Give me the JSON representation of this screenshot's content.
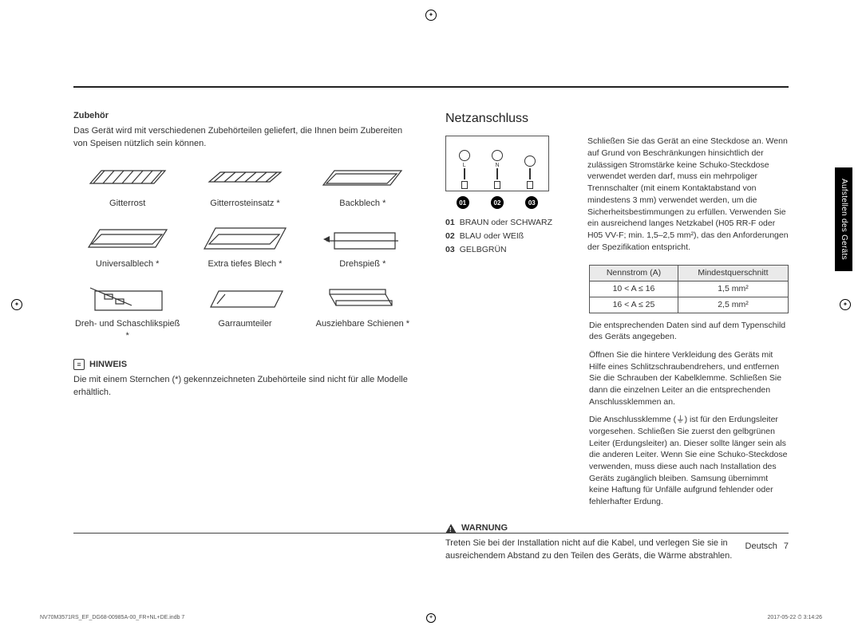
{
  "left": {
    "subhead": "Zubehör",
    "intro": "Das Gerät wird mit verschiedenen Zubehörteilen geliefert, die Ihnen beim Zubereiten von Speisen nützlich sein können.",
    "accessories": [
      {
        "label": "Gitterrost",
        "kind": "wire-rack"
      },
      {
        "label": "Gitterrosteinsatz *",
        "kind": "wire-insert"
      },
      {
        "label": "Backblech *",
        "kind": "tray"
      },
      {
        "label": "Universalblech *",
        "kind": "deep-tray"
      },
      {
        "label": "Extra tiefes Blech *",
        "kind": "extra-deep-tray"
      },
      {
        "label": "Drehspieß *",
        "kind": "rotisserie"
      },
      {
        "label": "Dreh- und Schaschlikspieß *",
        "kind": "skewer"
      },
      {
        "label": "Garraumteiler",
        "kind": "divider"
      },
      {
        "label": "Ausziehbare Schienen *",
        "kind": "rails"
      }
    ],
    "note": {
      "title": "HINWEIS",
      "text": "Die mit einem Sternchen (*) gekennzeichneten Zubehörteile sind nicht für alle Modelle erhältlich."
    }
  },
  "right": {
    "heading": "Netzanschluss",
    "term_labels": [
      "L",
      "N",
      ""
    ],
    "num_labels": [
      "01",
      "02",
      "03"
    ],
    "legend": [
      {
        "num": "01",
        "text": "BRAUN oder SCHWARZ"
      },
      {
        "num": "02",
        "text": "BLAU oder WEIß"
      },
      {
        "num": "03",
        "text": "GELBGRÜN"
      }
    ],
    "para1": "Schließen Sie das Gerät an eine Steckdose an. Wenn auf Grund von Beschränkungen hinsichtlich der zulässigen Stromstärke keine Schuko-Steckdose verwendet werden darf, muss ein mehrpoliger Trennschalter (mit einem Kontaktabstand von mindestens 3 mm) verwendet werden, um die Sicherheitsbestimmungen zu erfüllen. Verwenden Sie ein ausreichend langes Netzkabel (H05 RR-F oder H05 VV-F; min. 1,5–2,5 mm²), das den Anforderungen der Spezifikation entspricht.",
    "table": {
      "headers": [
        "Nennstrom (A)",
        "Mindestquerschnitt"
      ],
      "rows": [
        [
          "10 < A ≤ 16",
          "1,5 mm²"
        ],
        [
          "16 < A ≤ 25",
          "2,5 mm²"
        ]
      ]
    },
    "para2": "Die entsprechenden Daten sind auf dem Typenschild des Geräts angegeben.",
    "para3": "Öffnen Sie die hintere Verkleidung des Geräts mit Hilfe eines Schlitzschraubendrehers, und entfernen Sie die Schrauben der Kabelklemme. Schließen Sie dann die einzelnen Leiter an die entsprechenden Anschlussklemmen an.",
    "para4": "Die Anschlussklemme (⏚) ist für den Erdungsleiter vorgesehen. Schließen Sie zuerst den gelbgrünen Leiter (Erdungsleiter) an. Dieser sollte länger sein als die anderen Leiter. Wenn Sie eine Schuko-Steckdose verwenden, muss diese auch nach Installation des Geräts zugänglich bleiben. Samsung übernimmt keine Haftung für Unfälle aufgrund fehlender oder fehlerhafter Erdung.",
    "warn": {
      "title": "WARNUNG",
      "text": "Treten Sie bei der Installation nicht auf die Kabel, und verlegen Sie sie in ausreichendem Abstand zu den Teilen des Geräts, die Wärme abstrahlen."
    }
  },
  "side_tab": "Aufstellen des Geräts",
  "footer": {
    "lang": "Deutsch",
    "page": "7"
  },
  "print": {
    "left": "NV70M3571RS_EF_DG68-00985A-00_FR+NL+DE.indb   7",
    "right": "2017-05-22  ⏱ 3:14:26"
  }
}
